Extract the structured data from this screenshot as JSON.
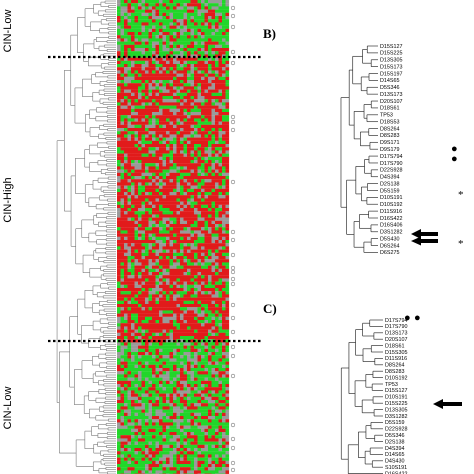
{
  "panel_a": {
    "group_labels": [
      "CIN-Low",
      "CIN-High",
      "CIN-Low"
    ],
    "colors": {
      "red": "#e11b1b",
      "green": "#22d62a",
      "gray": "#9a9a9a"
    }
  },
  "panel_b": {
    "label": "B)",
    "markers": [
      "●",
      "●",
      "*",
      "*"
    ],
    "leaves": [
      "D15S127",
      "D15S225",
      "D13S305",
      "D15S173",
      "D15S197",
      "D14S65",
      "D5S346",
      "D13S173",
      "D20S107",
      "D18S61",
      "TP53",
      "D18S53",
      "D8S264",
      "D8S283",
      "D9S171",
      "D9S179",
      "D17S794",
      "D17S790",
      "D22S928",
      "D4S394",
      "D2S138",
      "D5S159",
      "D10S191",
      "D10S192",
      "D11S916",
      "D16S422",
      "D16S406",
      "D3S1282",
      "D5S430",
      "D6S264",
      "D6S275"
    ]
  },
  "panel_c": {
    "label": "C)",
    "markers": [
      "●",
      "●"
    ],
    "leaves": [
      "D17S794",
      "D17S790",
      "D13S173",
      "D20S107",
      "D18S61",
      "D15S305",
      "D11S916",
      "D8S264",
      "D8S283",
      "D10S192",
      "TP53",
      "D15S127",
      "D10S191",
      "D15S225",
      "D13S305",
      "D3S1282",
      "D5S159",
      "D22S928",
      "D5S346",
      "D2S138",
      "D4S394",
      "D14S65",
      "D4S430",
      "S10S191",
      "D16S422"
    ]
  }
}
